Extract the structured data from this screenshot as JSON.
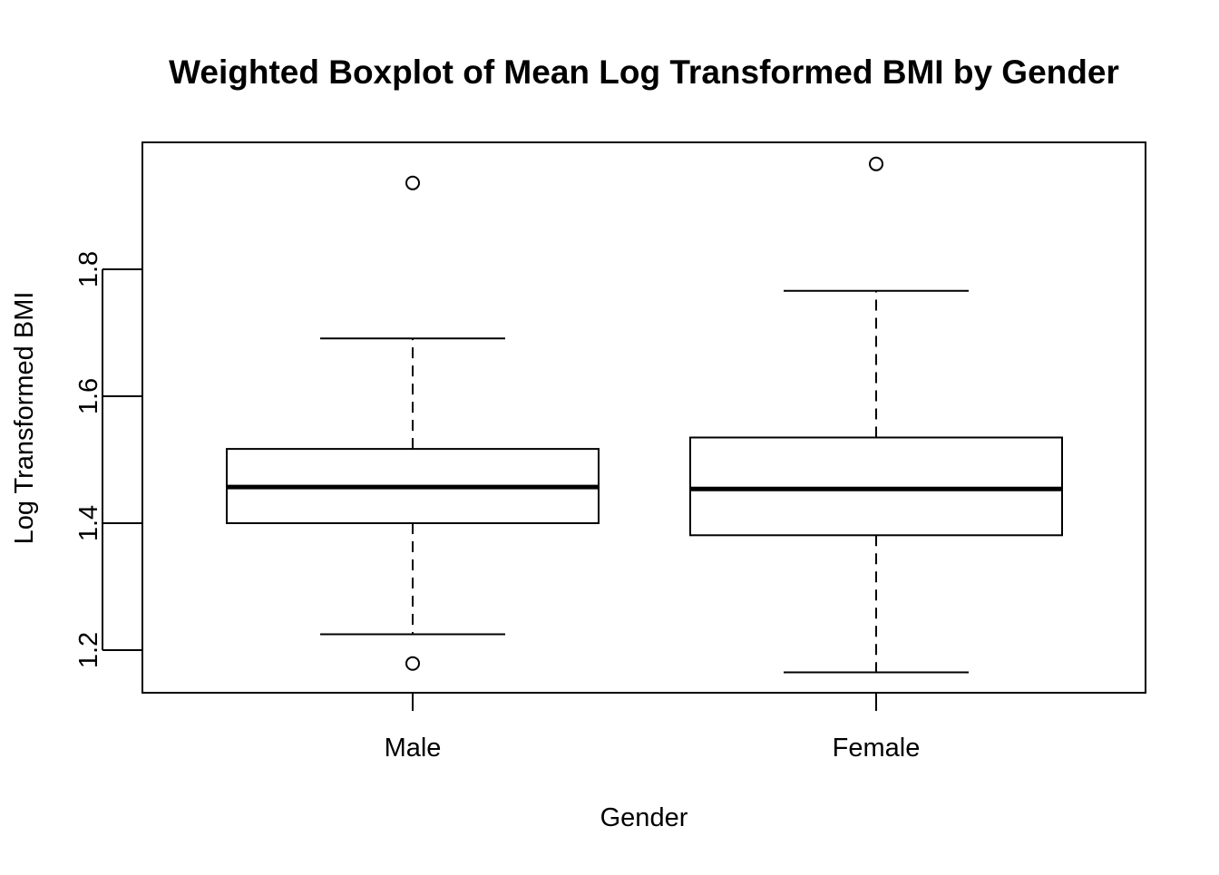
{
  "chart_data": {
    "type": "boxplot",
    "title": "Weighted Boxplot of Mean Log Transformed BMI by Gender",
    "xlabel": "Gender",
    "ylabel": "Log Transformed BMI",
    "categories": [
      "Male",
      "Female"
    ],
    "yticks": [
      "1.2",
      "1.4",
      "1.6",
      "1.8"
    ],
    "ylim": [
      1.135,
      1.999
    ],
    "grid": false,
    "legend": "none",
    "boxes": [
      {
        "category": "Male",
        "whisker_low": 1.225,
        "q1": 1.4,
        "median": 1.457,
        "q3": 1.517,
        "whisker_high": 1.691,
        "outliers": [
          1.936,
          1.179
        ]
      },
      {
        "category": "Female",
        "whisker_low": 1.165,
        "q1": 1.381,
        "median": 1.454,
        "q3": 1.535,
        "whisker_high": 1.766,
        "outliers": [
          1.966
        ]
      }
    ],
    "colors": {
      "stroke": "#000000",
      "background": "#ffffff"
    }
  }
}
